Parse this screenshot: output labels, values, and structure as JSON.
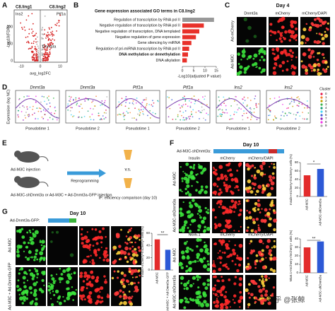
{
  "panels": {
    "A": {
      "label": "A",
      "groups": [
        "C8.ling1",
        "C8.ling2"
      ],
      "genes": [
        "Ins2",
        "Ptf1a",
        "Dnmt3a"
      ],
      "y_label": "-Log10(FDR)",
      "x_label": "avg_log2FC",
      "xticks": [
        "-10",
        "0",
        "10"
      ],
      "yticks": [
        "0",
        "100",
        "200"
      ]
    },
    "B": {
      "label": "B",
      "title": "Gene expression associated GO terms in C8.ling2",
      "terms": [
        "Regulation of transcription by RNA pol II",
        "Negative regulation of transcription by RNA pol II",
        "Negative regulation of transcription, DNA templated",
        "Negative regulation of gene expression",
        "Gene silencing by miRNA",
        "Regulation of pri-miRNA transcription by RNA pol II",
        "DNA methylation or demethylation",
        "DNA alkylation"
      ],
      "values": [
        14,
        9.5,
        7.5,
        6,
        4,
        3,
        2.5,
        2
      ],
      "colors": [
        "#999999",
        "#e8312a",
        "#e8312a",
        "#e8312a",
        "#e8312a",
        "#e8312a",
        "#e8312a",
        "#e8312a"
      ],
      "highlight": 6,
      "highlight_color": "#d11f1f",
      "x_label": "-Log10(adjusted P value)",
      "xlim": [
        0,
        15
      ],
      "xticks": [
        0,
        5,
        10,
        15
      ]
    },
    "C": {
      "label": "C",
      "day": "Day 4",
      "columns": [
        "Dnmt3a",
        "mCherry",
        "mCherry/DAPI"
      ],
      "rows": [
        "Ad-mCherry",
        "Ad-M3C"
      ]
    },
    "D": {
      "label": "D",
      "y_label": "Expression (log NC)",
      "plots": [
        {
          "gene": "Dnmt3a",
          "x_label": "Pseudotime 1"
        },
        {
          "gene": "Dnmt3a",
          "x_label": "Pseudotime 2"
        },
        {
          "gene": "Ptf1a",
          "x_label": "Pseudotime 1"
        },
        {
          "gene": "Ptf1a",
          "x_label": "Pseudotime 2"
        },
        {
          "gene": "Ins2",
          "x_label": "Pseudotime 1"
        },
        {
          "gene": "Ins2",
          "x_label": "Pseudotime 2"
        }
      ],
      "legend_title": "Cluster",
      "clusters": [
        "0",
        "1",
        "2",
        "3",
        "4",
        "5",
        "6",
        "7",
        "8",
        "9"
      ]
    },
    "E": {
      "label": "E",
      "step1": "Ad-M3C injection",
      "step2": "Ad-M3C-shDnmt3a or Ad-M3C + Ad-Dnmt3a-GFP injection",
      "arrow": "Reprogramming",
      "vs": "v.s.",
      "readout": "IF: efficiency comparison (day 10)"
    },
    "F": {
      "label": "F",
      "day": "Day 10",
      "construct": "Ad-M3C-shDnmt3a:",
      "rows": [
        "Ad-M3C",
        "Ad-M3C-shDnmt3a"
      ],
      "blocks": [
        {
          "columns": [
            "Insulin",
            "mCherry",
            "mCherry/DAPI"
          ],
          "y_label": "Insulin+mCherry+/mCherry+ cells (%)",
          "categories": [
            "Ad-M3C",
            "Ad-M3C-shDnmt3a"
          ],
          "values": [
            50,
            65
          ],
          "colors": [
            "#e32b2b",
            "#2d59d6"
          ],
          "sig": "*",
          "ylim": [
            0,
            80
          ],
          "yticks": [
            0,
            20,
            40,
            60,
            80
          ]
        },
        {
          "columns": [
            "Nkx6.1",
            "mCherry",
            "mCherry/DAPI"
          ],
          "y_label": "Nkx6.1+mCherry+/mCherry+ cells (%)",
          "categories": [
            "Ad-M3C",
            "Ad-M3C-shDnmt3a"
          ],
          "values": [
            30,
            37
          ],
          "colors": [
            "#e32b2b",
            "#2d59d6"
          ],
          "sig": "**",
          "ylim": [
            0,
            40
          ],
          "yticks": [
            0,
            10,
            20,
            30,
            40
          ]
        }
      ],
      "watermark": "知乎 @张鲸"
    },
    "G": {
      "label": "G",
      "day": "Day 10",
      "construct": "Ad-Dnmt3a-GFP:",
      "columns": [
        "Insulin",
        "GFP",
        "mCherry",
        "Merge"
      ],
      "rows": [
        "Ad-M3C",
        "Ad-M3C + Ad-Dnmt3a-GFP"
      ],
      "y_label": "Insulin+mCherry+/mCherry+ cells (%)",
      "categories": [
        "Ad-M3C",
        "Ad-M3C + Ad-Dnmt3a-GFP"
      ],
      "values": [
        50,
        33
      ],
      "colors": [
        "#e32b2b",
        "#2d59d6"
      ],
      "sig": "**",
      "ylim": [
        0,
        60
      ],
      "yticks": [
        0,
        20,
        40,
        60
      ]
    }
  }
}
